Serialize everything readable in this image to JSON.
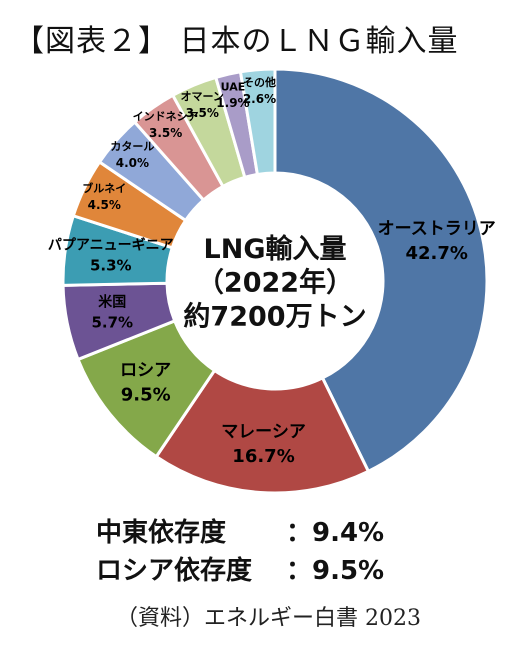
{
  "title": "【図表２】 日本のＬＮＧ輸入量",
  "chart_data": {
    "type": "pie",
    "style": "donut",
    "center_label": [
      "LNG輸入量",
      "（2022年）",
      "約7200万トン"
    ],
    "slices": [
      {
        "label": "オーストラリア",
        "value": 42.7,
        "value_label": "42.7%",
        "color": "#4f76a6"
      },
      {
        "label": "マレーシア",
        "value": 16.7,
        "value_label": "16.7%",
        "color": "#b04844"
      },
      {
        "label": "ロシア",
        "value": 9.5,
        "value_label": "9.5%",
        "color": "#84a84a"
      },
      {
        "label": "米国",
        "value": 5.7,
        "value_label": "5.7%",
        "color": "#6c5394"
      },
      {
        "label": "パプアニューギニア",
        "value": 5.3,
        "value_label": "5.3%",
        "color": "#3c9db3"
      },
      {
        "label": "ブルネイ",
        "value": 4.5,
        "value_label": "4.5%",
        "color": "#e0863a"
      },
      {
        "label": "カタール",
        "value": 4.0,
        "value_label": "4.0%",
        "color": "#90a8d8"
      },
      {
        "label": "インドネシア",
        "value": 3.5,
        "value_label": "3.5%",
        "color": "#d99594"
      },
      {
        "label": "オマーン",
        "value": 3.5,
        "value_label": "3.5%",
        "color": "#c4d89c"
      },
      {
        "label": "UAE",
        "value": 1.9,
        "value_label": "1.9%",
        "color": "#a99cc8"
      },
      {
        "label": "その他",
        "value": 2.6,
        "value_label": "2.6%",
        "color": "#9fd4e0"
      }
    ]
  },
  "stats": [
    {
      "label": "中東依存度",
      "value": "：9.4%"
    },
    {
      "label": "ロシア依存度",
      "value": "：9.5%"
    }
  ],
  "source": "（資料）エネルギー白書 2023"
}
